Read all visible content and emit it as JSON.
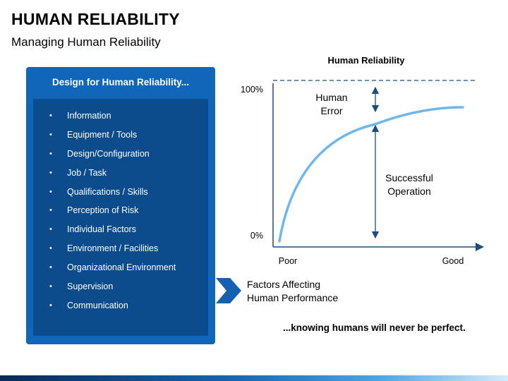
{
  "header": {
    "title": "HUMAN RELIABILITY",
    "subtitle": "Managing Human Reliability"
  },
  "panel": {
    "heading": "Design for Human Reliability...",
    "items": [
      "Information",
      "Equipment / Tools",
      "Design/Configuration",
      "Job / Task",
      "Qualifications / Skills",
      "Perception of Risk",
      "Individual Factors",
      "Environment / Facilities",
      "Organizational Environment",
      "Supervision",
      "Communication"
    ],
    "bullet": "•"
  },
  "factors": {
    "line1": "Factors Affecting",
    "line2": "Human Performance",
    "icon": "chevron-right-icon"
  },
  "chart": {
    "title": "Human Reliability",
    "y_top_label": "100%",
    "y_bottom_label": "0%",
    "x_left_label": "Poor",
    "x_right_label": "Good",
    "error_label_1": "Human",
    "error_label_2": "Error",
    "success_label_1": "Successful",
    "success_label_2": "Operation",
    "curve_color": "#6cb8ee",
    "arrow_color": "#1a4d80"
  },
  "tagline": "...knowing humans will never be perfect.",
  "colors": {
    "panel_outer": "#1066b9",
    "panel_inner": "#0d4c8c"
  }
}
